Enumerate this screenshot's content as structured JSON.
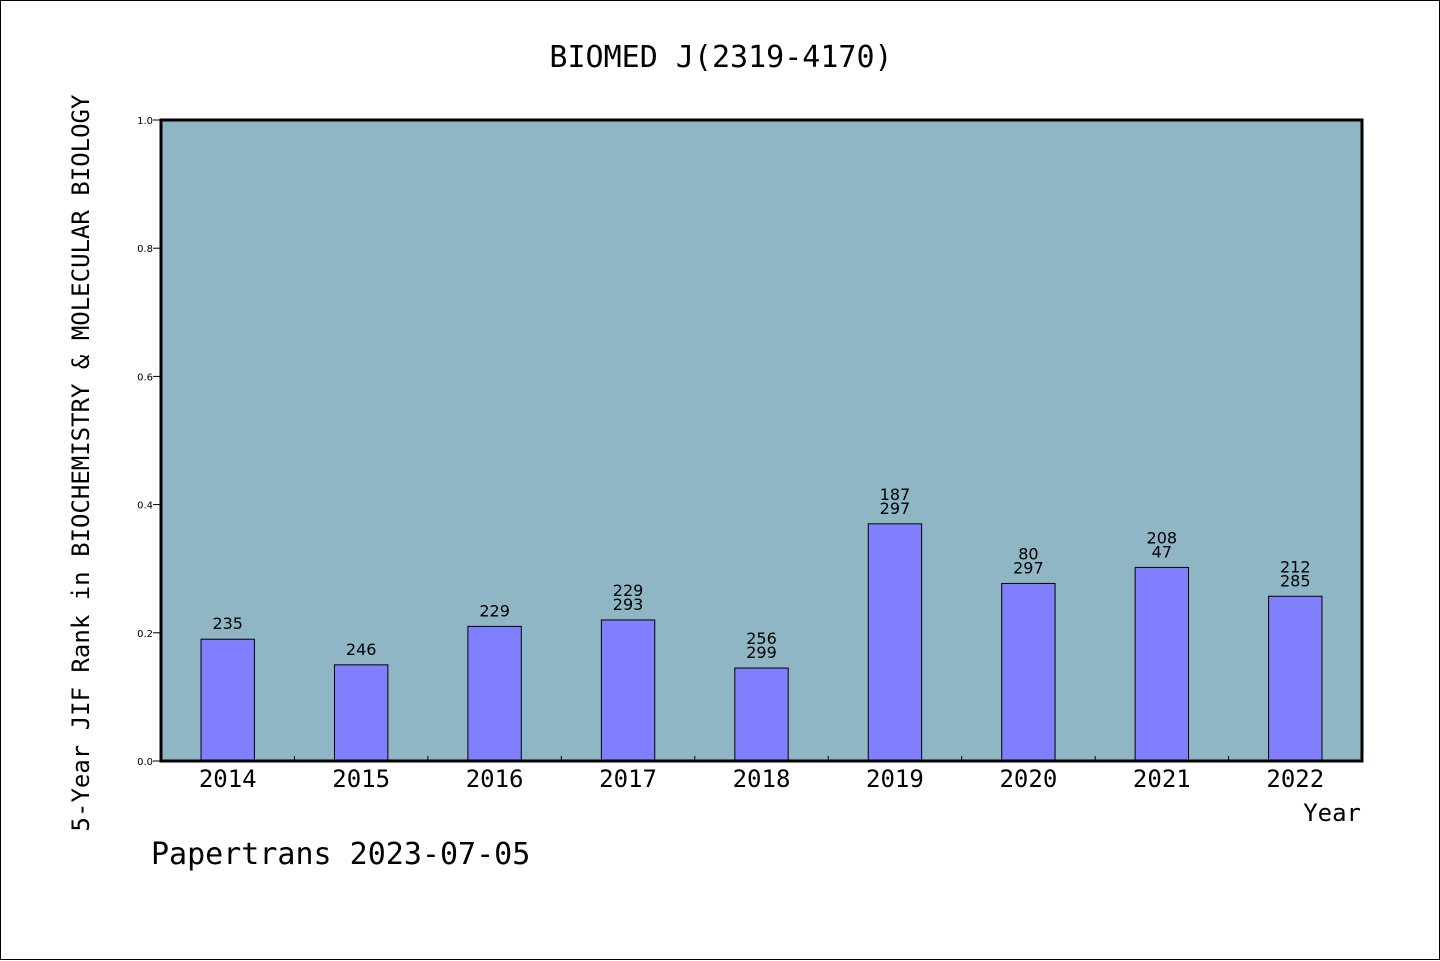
{
  "chart_data": {
    "type": "bar",
    "title": "BIOMED J(2319-4170)",
    "xlabel": "Year",
    "ylabel": "5-Year JIF Rank in BIOCHEMISTRY & MOLECULAR BIOLOGY",
    "ylim": [
      0,
      1.0
    ],
    "yticks": [
      "0.0",
      "0.2",
      "0.4",
      "0.6",
      "0.8",
      "1.0"
    ],
    "categories": [
      "2014",
      "2015",
      "2016",
      "2017",
      "2018",
      "2019",
      "2020",
      "2021",
      "2022"
    ],
    "values": [
      0.19,
      0.15,
      0.21,
      0.22,
      0.145,
      0.37,
      0.277,
      0.302,
      0.257
    ],
    "bar_labels": [
      [
        "235"
      ],
      [
        "246"
      ],
      [
        "229"
      ],
      [
        "229",
        "293"
      ],
      [
        "256",
        "299"
      ],
      [
        "187",
        "297"
      ],
      [
        "80",
        "297"
      ],
      [
        "208",
        "47"
      ],
      [
        "212",
        "285"
      ]
    ],
    "grid": false,
    "colors": {
      "plot_background": "#8fb6c4",
      "bar": "#8080ff",
      "bar_edge": "#000000"
    }
  },
  "footer": "Papertrans 2023-07-05"
}
